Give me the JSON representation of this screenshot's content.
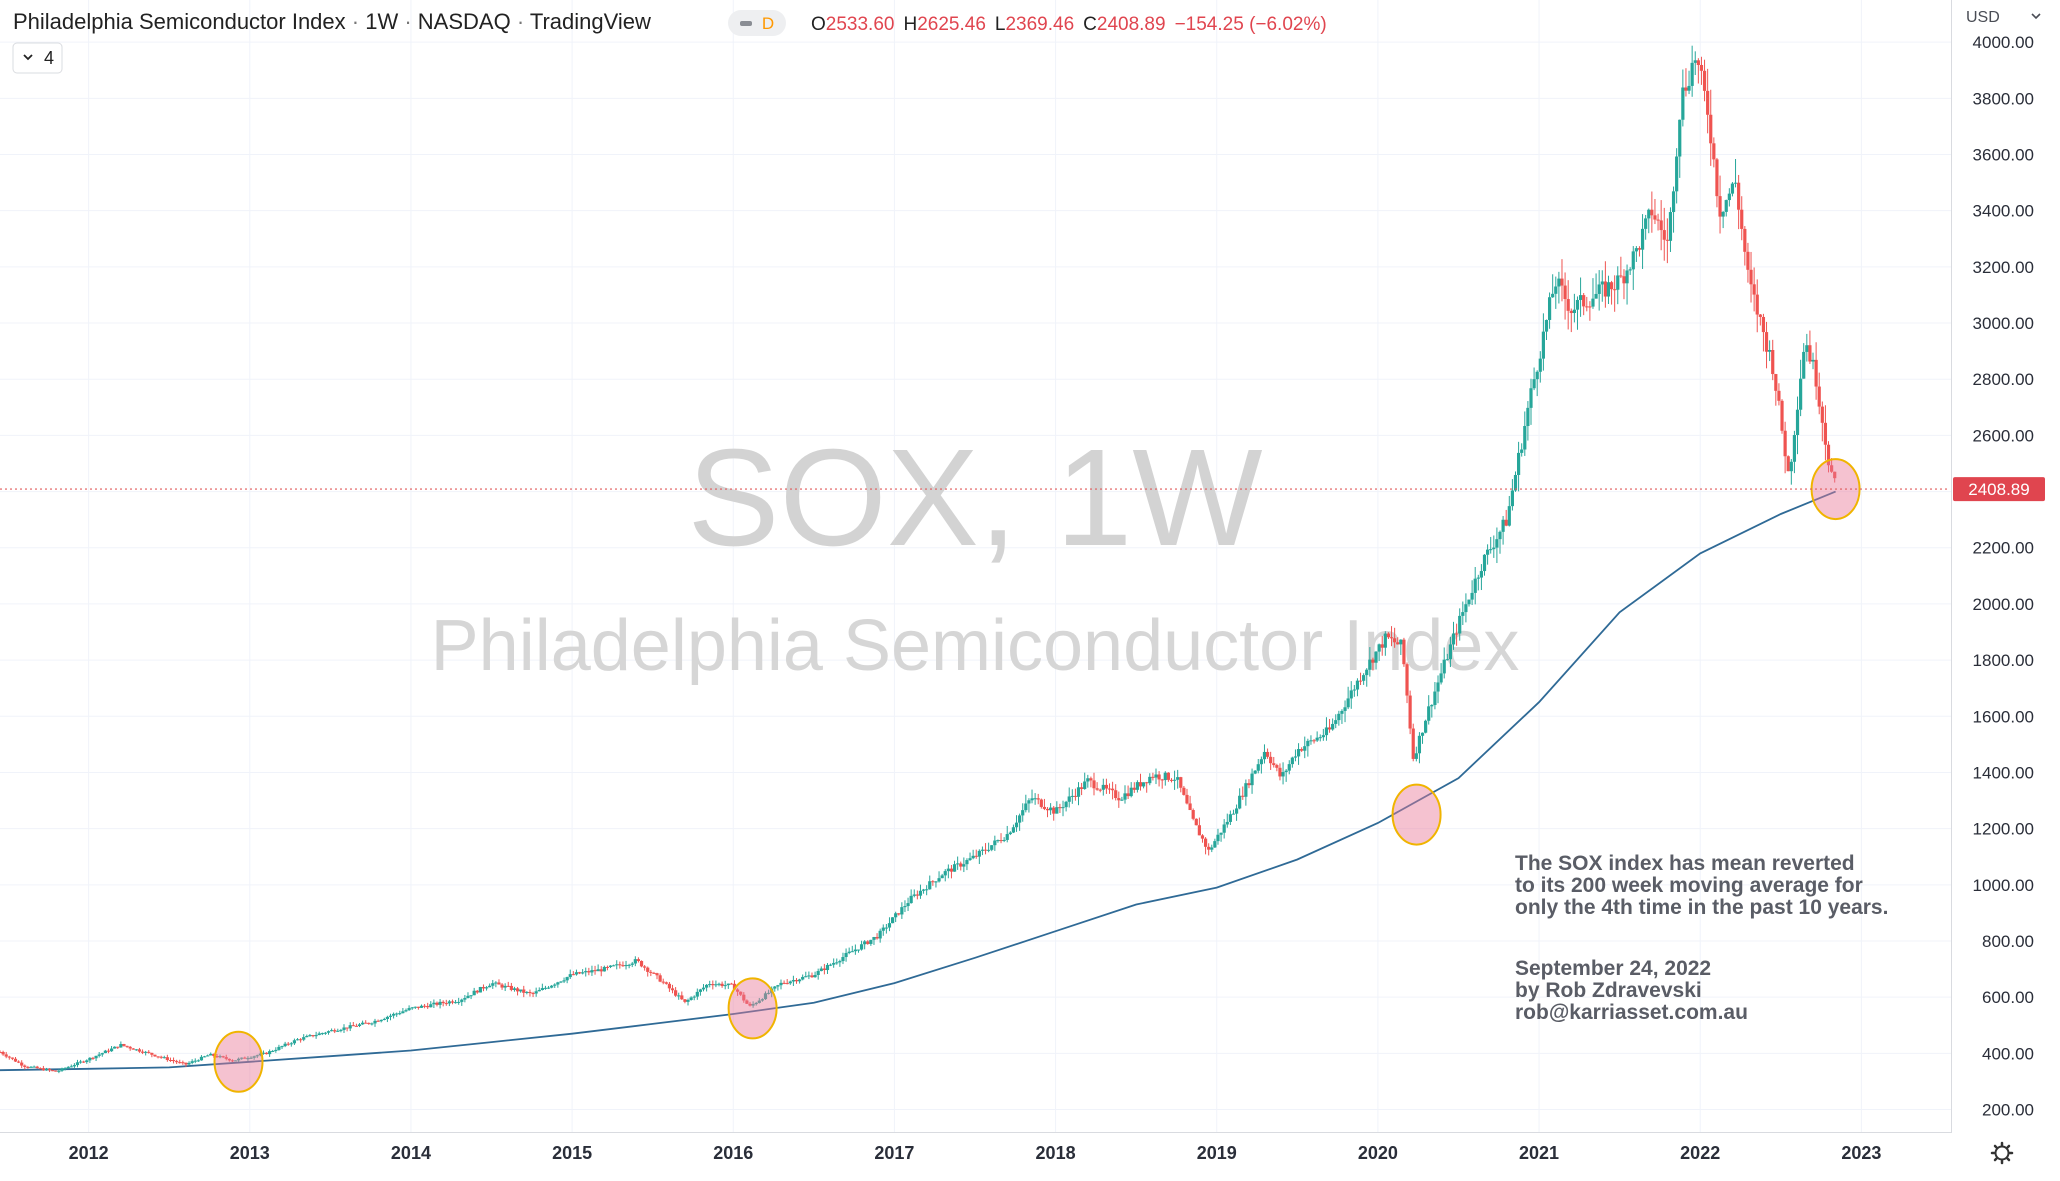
{
  "header": {
    "title": "Philadelphia Semiconductor Index",
    "interval": "1W",
    "exchange": "NASDAQ",
    "provider": "TradingView",
    "badge": "D",
    "open_label": "O",
    "open": "2533.60",
    "high_label": "H",
    "high": "2625.46",
    "low_label": "L",
    "low": "2369.46",
    "close_label": "C",
    "close": "2408.89",
    "change": "−154.25 (−6.02%)",
    "indicator_count": "4"
  },
  "currency_label": "USD",
  "watermark": {
    "symbol": "SOX, 1W",
    "name": "Philadelphia Semiconductor Index"
  },
  "annotation": {
    "lines": [
      "The SOX index has mean reverted",
      "to its 200 week moving average for",
      "only the 4th time in the past 10 years."
    ],
    "date": "September 24, 2022",
    "author": "by Rob Zdravevski",
    "email": "rob@karriasset.com.au"
  },
  "chart_data": {
    "type": "candlestick",
    "title": "Philadelphia Semiconductor Index · 1W · NASDAQ",
    "x_ticks": [
      "2012",
      "2013",
      "2014",
      "2015",
      "2016",
      "2017",
      "2018",
      "2019",
      "2020",
      "2021",
      "2022",
      "2023"
    ],
    "y_ticks": [
      "200.00",
      "400.00",
      "600.00",
      "800.00",
      "1000.00",
      "1200.00",
      "1400.00",
      "1600.00",
      "1800.00",
      "2000.00",
      "2200.00",
      "2400.00",
      "2600.00",
      "2800.00",
      "3000.00",
      "3200.00",
      "3400.00",
      "3600.00",
      "3800.00",
      "4000.00"
    ],
    "ylim": [
      120,
      4150
    ],
    "xlim": [
      2011.45,
      2023.55
    ],
    "last_price": 2408.89,
    "last_price_label": "2408.89",
    "price_path": [
      [
        2011.45,
        405
      ],
      [
        2011.6,
        355
      ],
      [
        2011.8,
        335
      ],
      [
        2012.0,
        380
      ],
      [
        2012.2,
        430
      ],
      [
        2012.4,
        395
      ],
      [
        2012.6,
        360
      ],
      [
        2012.75,
        395
      ],
      [
        2012.9,
        375
      ],
      [
        2013.1,
        400
      ],
      [
        2013.3,
        450
      ],
      [
        2013.5,
        480
      ],
      [
        2013.75,
        510
      ],
      [
        2014.0,
        560
      ],
      [
        2014.3,
        590
      ],
      [
        2014.5,
        650
      ],
      [
        2014.75,
        610
      ],
      [
        2015.0,
        680
      ],
      [
        2015.2,
        700
      ],
      [
        2015.4,
        730
      ],
      [
        2015.55,
        660
      ],
      [
        2015.7,
        580
      ],
      [
        2015.85,
        650
      ],
      [
        2016.0,
        640
      ],
      [
        2016.1,
        565
      ],
      [
        2016.3,
        650
      ],
      [
        2016.5,
        680
      ],
      [
        2016.7,
        750
      ],
      [
        2016.9,
        820
      ],
      [
        2017.1,
        950
      ],
      [
        2017.3,
        1040
      ],
      [
        2017.5,
        1100
      ],
      [
        2017.7,
        1180
      ],
      [
        2017.85,
        1310
      ],
      [
        2018.0,
        1260
      ],
      [
        2018.2,
        1370
      ],
      [
        2018.4,
        1310
      ],
      [
        2018.6,
        1390
      ],
      [
        2018.75,
        1380
      ],
      [
        2018.85,
        1230
      ],
      [
        2018.95,
        1120
      ],
      [
        2019.1,
        1260
      ],
      [
        2019.3,
        1480
      ],
      [
        2019.4,
        1380
      ],
      [
        2019.5,
        1480
      ],
      [
        2019.7,
        1550
      ],
      [
        2019.9,
        1750
      ],
      [
        2020.05,
        1880
      ],
      [
        2020.15,
        1850
      ],
      [
        2020.22,
        1450
      ],
      [
        2020.3,
        1600
      ],
      [
        2020.5,
        1930
      ],
      [
        2020.65,
        2150
      ],
      [
        2020.8,
        2300
      ],
      [
        2020.95,
        2750
      ],
      [
        2021.1,
        3150
      ],
      [
        2021.2,
        3050
      ],
      [
        2021.35,
        3100
      ],
      [
        2021.5,
        3150
      ],
      [
        2021.6,
        3250
      ],
      [
        2021.7,
        3400
      ],
      [
        2021.8,
        3280
      ],
      [
        2021.88,
        3800
      ],
      [
        2021.97,
        3950
      ],
      [
        2022.05,
        3750
      ],
      [
        2022.12,
        3400
      ],
      [
        2022.22,
        3500
      ],
      [
        2022.3,
        3150
      ],
      [
        2022.45,
        2850
      ],
      [
        2022.55,
        2450
      ],
      [
        2022.65,
        2950
      ],
      [
        2022.72,
        2800
      ],
      [
        2022.8,
        2500
      ],
      [
        2022.84,
        2408.89
      ]
    ],
    "ma200": {
      "name": "200 week moving average",
      "points": [
        [
          2011.45,
          340
        ],
        [
          2012.0,
          345
        ],
        [
          2012.5,
          350
        ],
        [
          2013.0,
          370
        ],
        [
          2013.5,
          390
        ],
        [
          2014.0,
          410
        ],
        [
          2014.5,
          440
        ],
        [
          2015.0,
          470
        ],
        [
          2015.5,
          505
        ],
        [
          2016.0,
          540
        ],
        [
          2016.5,
          580
        ],
        [
          2017.0,
          650
        ],
        [
          2017.5,
          740
        ],
        [
          2018.0,
          835
        ],
        [
          2018.5,
          930
        ],
        [
          2019.0,
          990
        ],
        [
          2019.5,
          1090
        ],
        [
          2020.0,
          1220
        ],
        [
          2020.5,
          1380
        ],
        [
          2021.0,
          1650
        ],
        [
          2021.5,
          1970
        ],
        [
          2022.0,
          2180
        ],
        [
          2022.5,
          2320
        ],
        [
          2022.84,
          2400
        ]
      ]
    },
    "highlights": [
      {
        "x": 2012.93,
        "y": 370
      },
      {
        "x": 2016.12,
        "y": 560
      },
      {
        "x": 2020.24,
        "y": 1250
      },
      {
        "x": 2022.84,
        "y": 2408.89
      }
    ]
  }
}
